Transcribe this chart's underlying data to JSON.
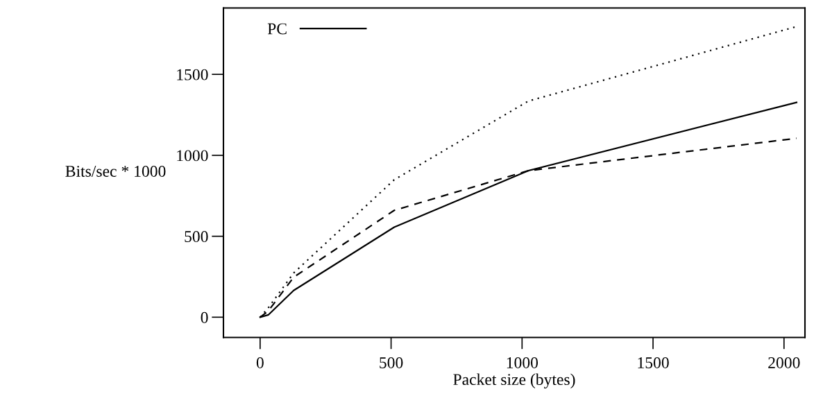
{
  "chart_data": {
    "type": "line",
    "xlabel": "Packet size (bytes)",
    "ylabel": "Bits/sec * 1000",
    "x": [
      0,
      32,
      128,
      512,
      1024,
      2048
    ],
    "series": [
      {
        "name": "PC",
        "color": "#000000",
        "line_style": "solid",
        "values": [
          0,
          15,
          165,
          556,
          905,
          1327
        ]
      },
      {
        "color": "#000000",
        "line_style": "dashed",
        "values": [
          0,
          40,
          247,
          660,
          905,
          1105
        ]
      },
      {
        "color": "#000000",
        "line_style": "dotted",
        "values": [
          0,
          60,
          273,
          849,
          1335,
          1795
        ]
      }
    ],
    "xlim": [
      -140,
      2080
    ],
    "ylim": [
      -125,
      1910
    ],
    "xticks": [
      0,
      500,
      1000,
      1500,
      2000
    ],
    "yticks": [
      0,
      500,
      1000,
      1500
    ],
    "legend": "top left",
    "grid": false,
    "marker": "none"
  }
}
